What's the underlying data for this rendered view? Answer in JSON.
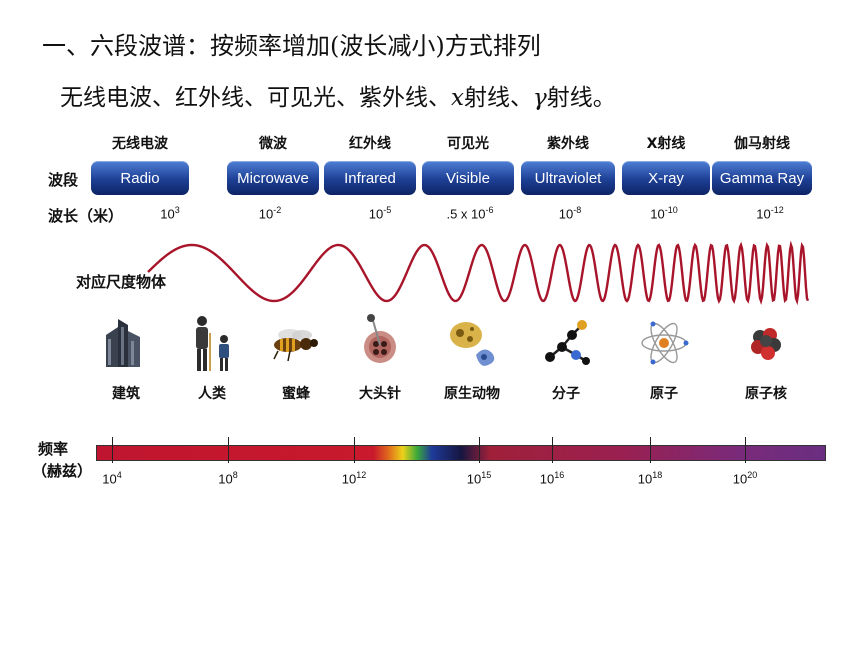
{
  "heading": {
    "title": "一、六段波谱：按频率增加(波长减小)方式排列",
    "subtitle_pre": "无线电波、红外线、可见光、紫外线、",
    "subtitle_x": "x",
    "subtitle_mid": "射线、",
    "subtitle_gamma": "γ",
    "subtitle_post": "射线。"
  },
  "row_labels": {
    "band": "波段",
    "wavelength": "波长（米）",
    "scale": "对应尺度物体",
    "frequency_1": "频率",
    "frequency_2": "（赫兹）"
  },
  "bands": [
    {
      "cn": "无线电波",
      "en": "Radio",
      "wl_base": "10",
      "wl_exp": "3"
    },
    {
      "cn": "微波",
      "en": "Microwave",
      "wl_base": "10",
      "wl_exp": "-2"
    },
    {
      "cn": "红外线",
      "en": "Infrared",
      "wl_base": "10",
      "wl_exp": "-5"
    },
    {
      "cn": "可见光",
      "en": "Visible",
      "wl_base": ".5 x 10",
      "wl_exp": "-6"
    },
    {
      "cn": "紫外线",
      "en": "Ultraviolet",
      "wl_base": "10",
      "wl_exp": "-8"
    },
    {
      "cn": "X射线",
      "en": "X-ray",
      "wl_base": "10",
      "wl_exp": "-10"
    },
    {
      "cn": "伽马射线",
      "en": "Gamma Ray",
      "wl_base": "10",
      "wl_exp": "-12"
    }
  ],
  "objects": [
    {
      "label": "建筑",
      "icon": "building-icon"
    },
    {
      "label": "人类",
      "icon": "humans-icon"
    },
    {
      "label": "蜜蜂",
      "icon": "bee-icon"
    },
    {
      "label": "大头针",
      "icon": "pin-icon"
    },
    {
      "label": "原生动物",
      "icon": "protozoa-icon"
    },
    {
      "label": "分子",
      "icon": "molecule-icon"
    },
    {
      "label": "原子",
      "icon": "atom-icon"
    },
    {
      "label": "原子核",
      "icon": "nucleus-icon"
    }
  ],
  "frequency_ticks": [
    {
      "base": "10",
      "exp": "4"
    },
    {
      "base": "10",
      "exp": "8"
    },
    {
      "base": "10",
      "exp": "12"
    },
    {
      "base": "10",
      "exp": "15"
    },
    {
      "base": "10",
      "exp": "16"
    },
    {
      "base": "10",
      "exp": "18"
    },
    {
      "base": "10",
      "exp": "20"
    }
  ],
  "colors": {
    "band_blue": "#1d3f94",
    "wave_red": "#a8142a"
  }
}
